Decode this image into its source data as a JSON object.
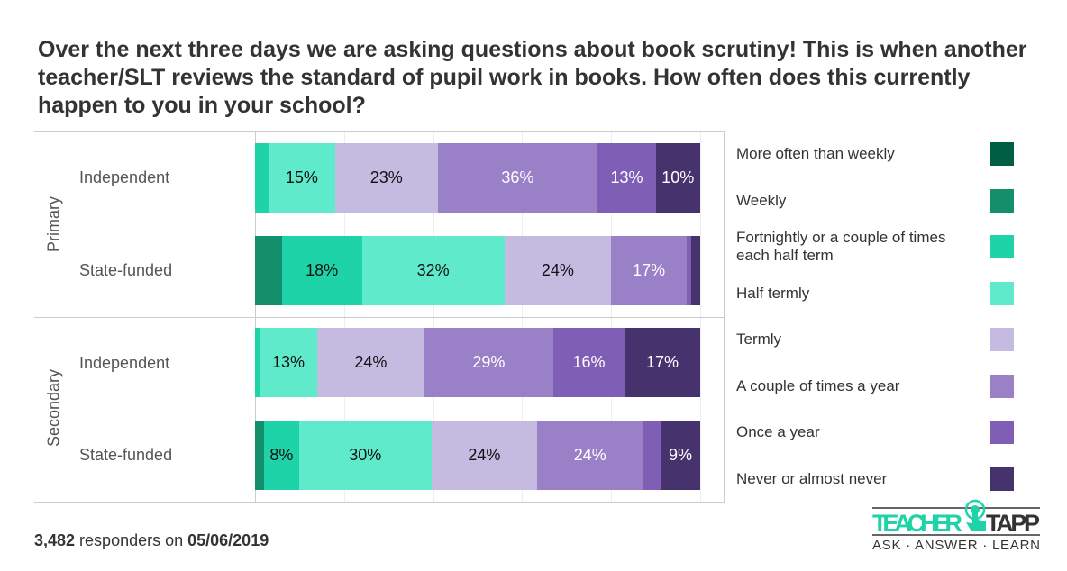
{
  "title": "Over the next three days we are asking questions about book scrutiny! This is when another teacher/SLT reviews the standard of pupil work in books. How often does this currently happen to you in your school?",
  "chart_data": {
    "type": "bar",
    "orientation": "horizontal",
    "stacked": true,
    "xlim": [
      0,
      100
    ],
    "grid": true,
    "legend_position": "right",
    "groups": [
      "Primary",
      "Secondary"
    ],
    "categories": [
      {
        "group": "Primary",
        "label": "Independent"
      },
      {
        "group": "Primary",
        "label": "State-funded"
      },
      {
        "group": "Secondary",
        "label": "Independent"
      },
      {
        "group": "Secondary",
        "label": "State-funded"
      }
    ],
    "series": [
      {
        "name": "More often than weekly",
        "color": "#005e45",
        "values": [
          0,
          0,
          0,
          0
        ]
      },
      {
        "name": "Weekly",
        "color": "#13906b",
        "values": [
          0,
          6,
          0,
          2
        ]
      },
      {
        "name": "Fortnightly or a couple of times each half term",
        "color": "#1dd3a7",
        "values": [
          3,
          18,
          1,
          8
        ]
      },
      {
        "name": "Half termly",
        "color": "#5eeacb",
        "values": [
          15,
          32,
          13,
          30
        ]
      },
      {
        "name": "Termly",
        "color": "#c5badf",
        "values": [
          23,
          24,
          24,
          24
        ]
      },
      {
        "name": "A couple of times a year",
        "color": "#9a80c6",
        "values": [
          36,
          17,
          29,
          24
        ]
      },
      {
        "name": "Once a year",
        "color": "#7f5fb5",
        "values": [
          13,
          1,
          16,
          4
        ]
      },
      {
        "name": "Never or almost never",
        "color": "#46336e",
        "values": [
          10,
          2,
          17,
          9
        ]
      }
    ]
  },
  "footer": {
    "count": "3,482",
    "middle": " responders on ",
    "date": "05/06/2019"
  },
  "logo": {
    "text": "TEACHER TAPP",
    "tagline": "ASK · ANSWER · LEARN"
  }
}
